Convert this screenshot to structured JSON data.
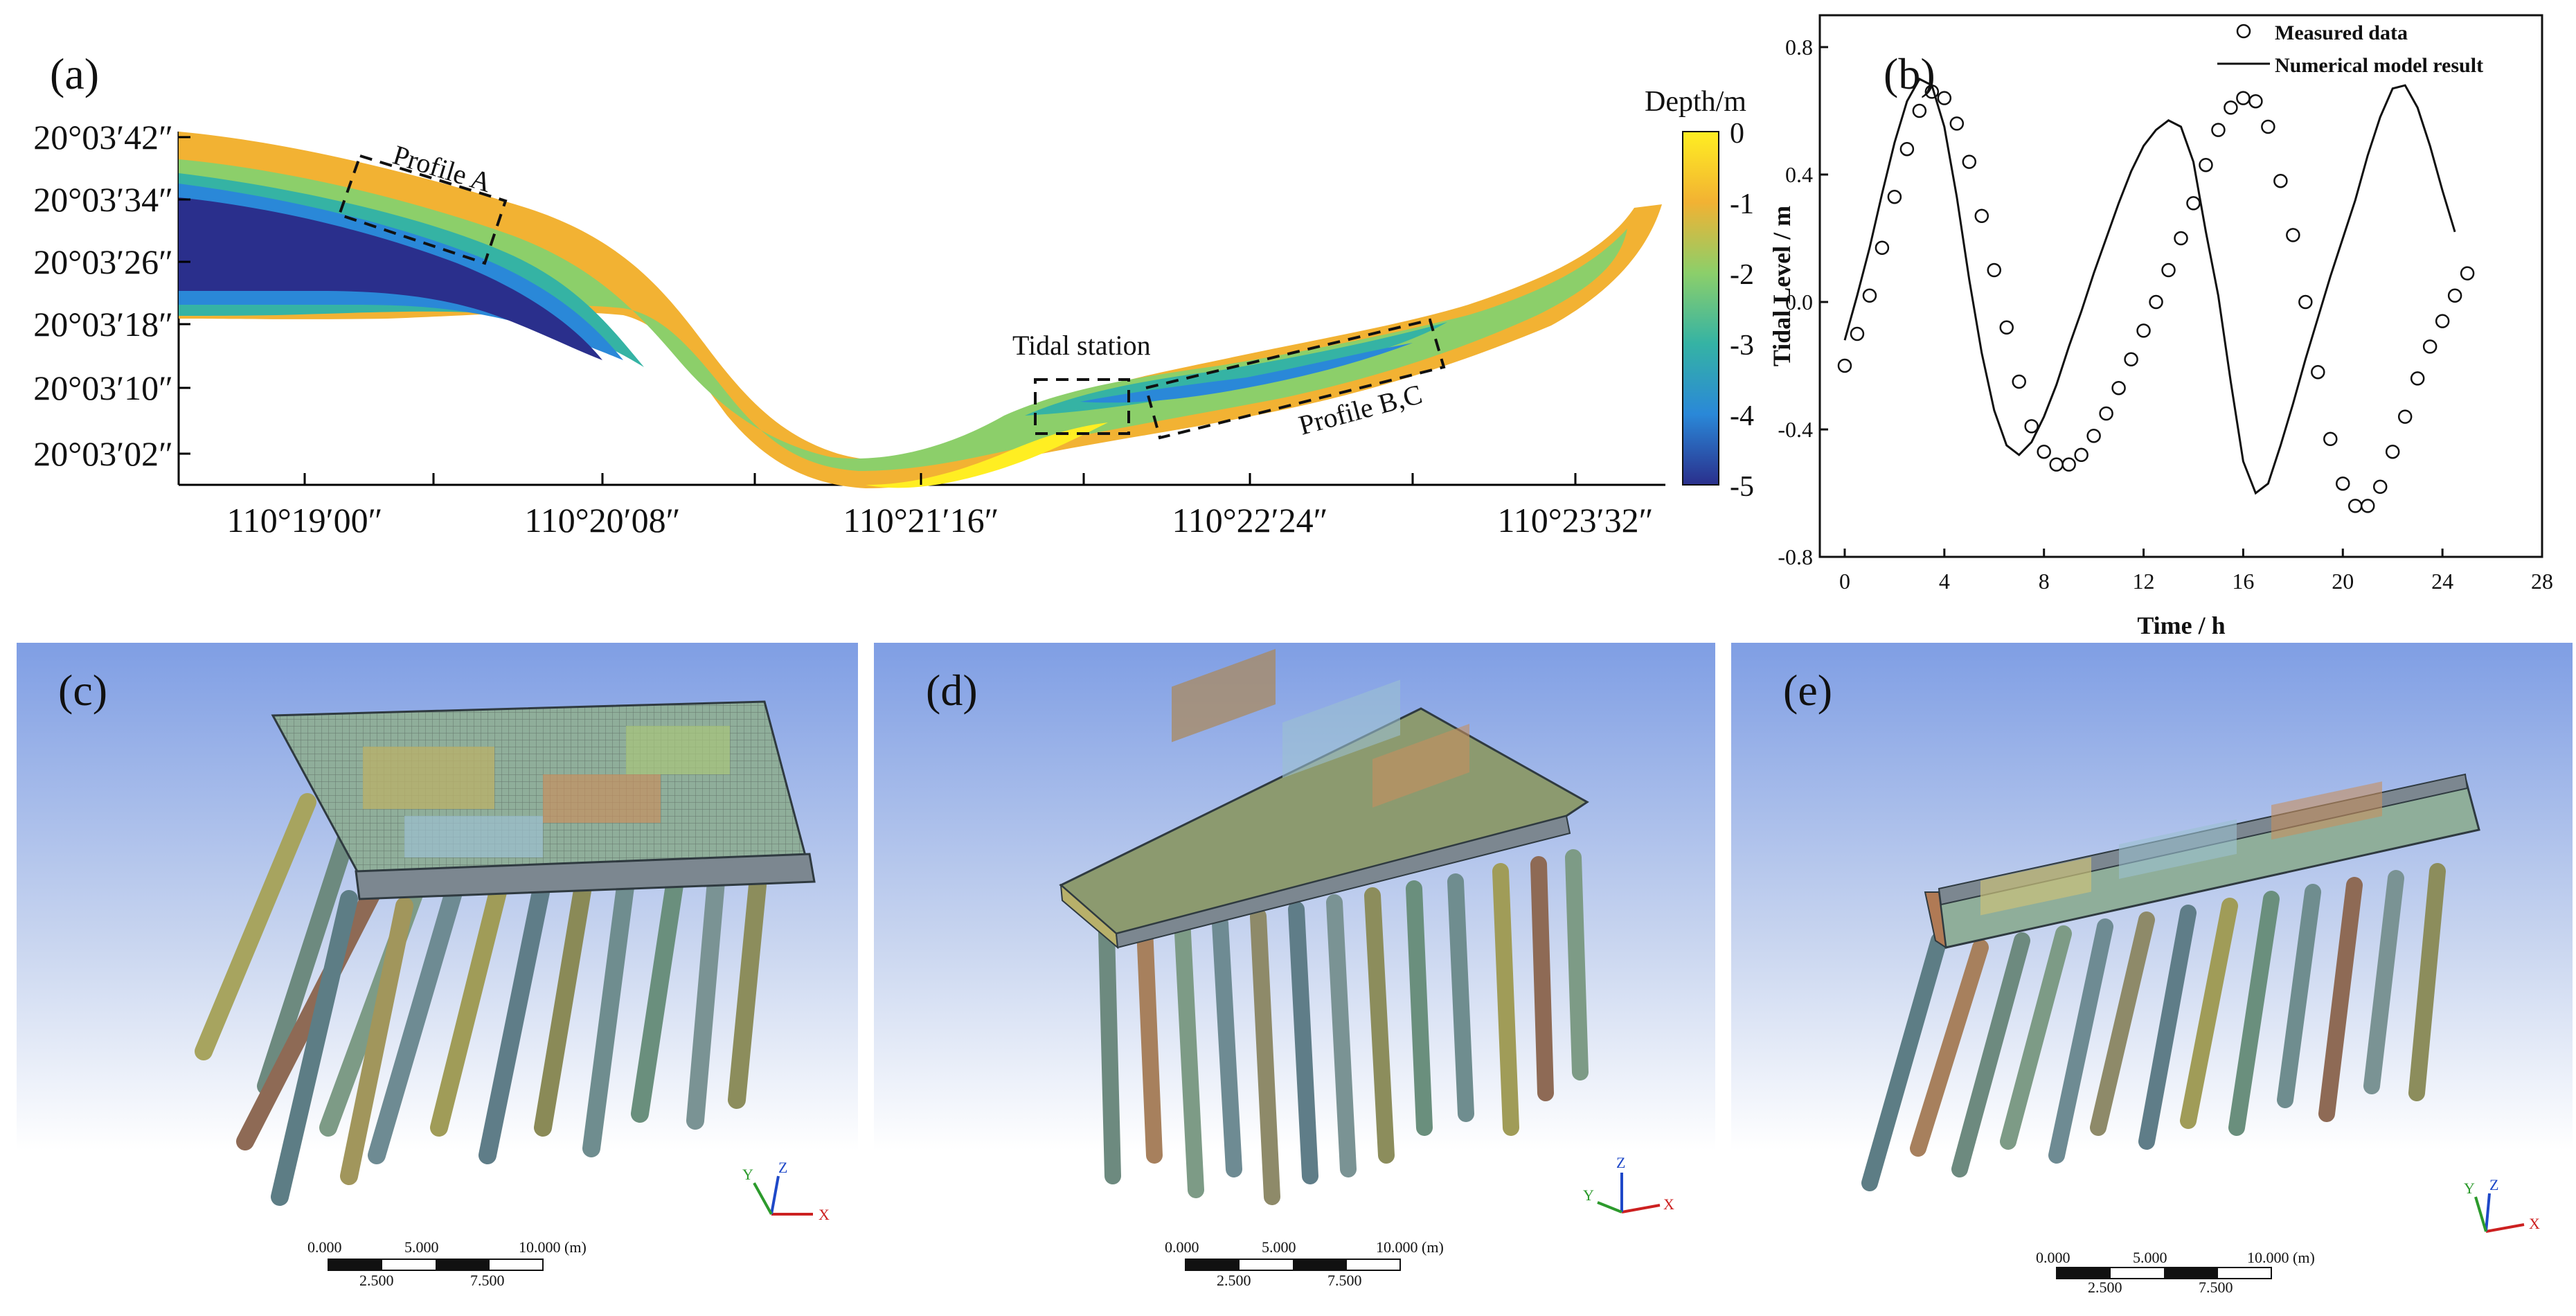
{
  "figure": {
    "panel_labels": [
      "(a)",
      "(b)",
      "(c)",
      "(d)",
      "(e)"
    ]
  },
  "map": {
    "lat_ticks": [
      "20°03′42″",
      "20°03′34″",
      "20°03′26″",
      "20°03′18″",
      "20°03′10″",
      "20°03′02″"
    ],
    "lon_ticks": [
      "110°19′00″",
      "110°20′08″",
      "110°21′16″",
      "110°22′24″",
      "110°23′32″"
    ],
    "annotations": {
      "profile_a": "Profile A",
      "tidal_station": "Tidal station",
      "profile_bc": "Profile B,C"
    },
    "colorbar": {
      "title": "Depth/m",
      "ticks": [
        "0",
        "-1",
        "-2",
        "-3",
        "-4",
        "-5"
      ],
      "colors": [
        "#ffee22",
        "#f2b233",
        "#8ccf6a",
        "#35b3a4",
        "#2a88d8",
        "#2a2f8c"
      ]
    }
  },
  "chart_data": {
    "type": "line",
    "xlabel": "Time / h",
    "ylabel": "Tidal Level / m",
    "xlim": [
      -1,
      28
    ],
    "ylim": [
      -0.8,
      0.9
    ],
    "xticks": [
      0,
      4,
      8,
      12,
      16,
      20,
      24,
      28
    ],
    "yticks": [
      -0.8,
      -0.4,
      0.0,
      0.4,
      0.8
    ],
    "xtick_labels": [
      "0",
      "4",
      "8",
      "12",
      "16",
      "20",
      "24",
      "28"
    ],
    "ytick_labels": [
      "-0.8",
      "-0.4",
      "0.0",
      "0.4",
      "0.8"
    ],
    "legend_position": "top-right",
    "series": [
      {
        "name": "Measured data",
        "style": "scatter",
        "x": [
          0,
          0.5,
          1,
          1.5,
          2,
          2.5,
          3,
          3.5,
          4,
          4.5,
          5,
          5.5,
          6,
          6.5,
          7,
          7.5,
          8,
          8.5,
          9,
          9.5,
          10,
          10.5,
          11,
          11.5,
          12,
          12.5,
          13,
          13.5,
          14,
          14.5,
          15,
          15.5,
          16,
          16.5,
          17,
          17.5,
          18,
          18.5,
          19,
          19.5,
          20,
          20.5,
          21,
          21.5,
          22,
          22.5,
          23,
          23.5,
          24,
          24.5,
          25
        ],
        "y": [
          -0.2,
          -0.1,
          0.02,
          0.17,
          0.33,
          0.48,
          0.6,
          0.66,
          0.64,
          0.56,
          0.44,
          0.27,
          0.1,
          -0.08,
          -0.25,
          -0.39,
          -0.47,
          -0.51,
          -0.51,
          -0.48,
          -0.42,
          -0.35,
          -0.27,
          -0.18,
          -0.09,
          0.0,
          0.1,
          0.2,
          0.31,
          0.43,
          0.54,
          0.61,
          0.64,
          0.63,
          0.55,
          0.38,
          0.21,
          0.0,
          -0.22,
          -0.43,
          -0.57,
          -0.64,
          -0.64,
          -0.58,
          -0.47,
          -0.36,
          -0.24,
          -0.14,
          -0.06,
          0.02,
          0.09
        ]
      },
      {
        "name": "Numerical model result",
        "style": "line",
        "x": [
          0,
          0.5,
          1,
          1.5,
          2,
          2.5,
          3,
          3.5,
          4,
          4.5,
          5,
          5.5,
          6,
          6.5,
          7,
          7.5,
          8,
          8.5,
          9,
          9.5,
          10,
          10.5,
          11,
          11.5,
          12,
          12.5,
          13,
          13.5,
          14,
          14.5,
          15,
          15.5,
          16,
          16.5,
          17,
          17.5,
          18,
          18.5,
          19,
          19.5,
          20,
          20.5,
          21,
          21.5,
          22,
          22.5,
          23,
          23.5,
          24,
          24.5
        ],
        "y": [
          -0.12,
          0.02,
          0.17,
          0.34,
          0.5,
          0.63,
          0.7,
          0.68,
          0.55,
          0.33,
          0.07,
          -0.16,
          -0.34,
          -0.45,
          -0.48,
          -0.44,
          -0.36,
          -0.26,
          -0.14,
          -0.03,
          0.09,
          0.2,
          0.31,
          0.41,
          0.49,
          0.54,
          0.57,
          0.55,
          0.44,
          0.22,
          0.02,
          -0.25,
          -0.5,
          -0.6,
          -0.57,
          -0.45,
          -0.32,
          -0.18,
          -0.05,
          0.08,
          0.2,
          0.32,
          0.46,
          0.58,
          0.67,
          0.68,
          0.61,
          0.49,
          0.35,
          0.22
        ]
      }
    ]
  },
  "models": [
    {
      "label": "(c)",
      "axis_labels": {
        "x": "X",
        "y": "Y",
        "z": "Z"
      },
      "scale": {
        "top": [
          "0.000",
          "5.000",
          "10.000 (m)"
        ],
        "bottom": [
          "2.500",
          "7.500"
        ]
      }
    },
    {
      "label": "(d)",
      "axis_labels": {
        "x": "X",
        "y": "Y",
        "z": "Z"
      },
      "scale": {
        "top": [
          "0.000",
          "5.000",
          "10.000 (m)"
        ],
        "bottom": [
          "2.500",
          "7.500"
        ]
      }
    },
    {
      "label": "(e)",
      "axis_labels": {
        "x": "X",
        "y": "Y",
        "z": "Z"
      },
      "scale": {
        "top": [
          "0.000",
          "5.000",
          "10.000 (m)"
        ],
        "bottom": [
          "2.500",
          "7.500"
        ]
      }
    }
  ]
}
